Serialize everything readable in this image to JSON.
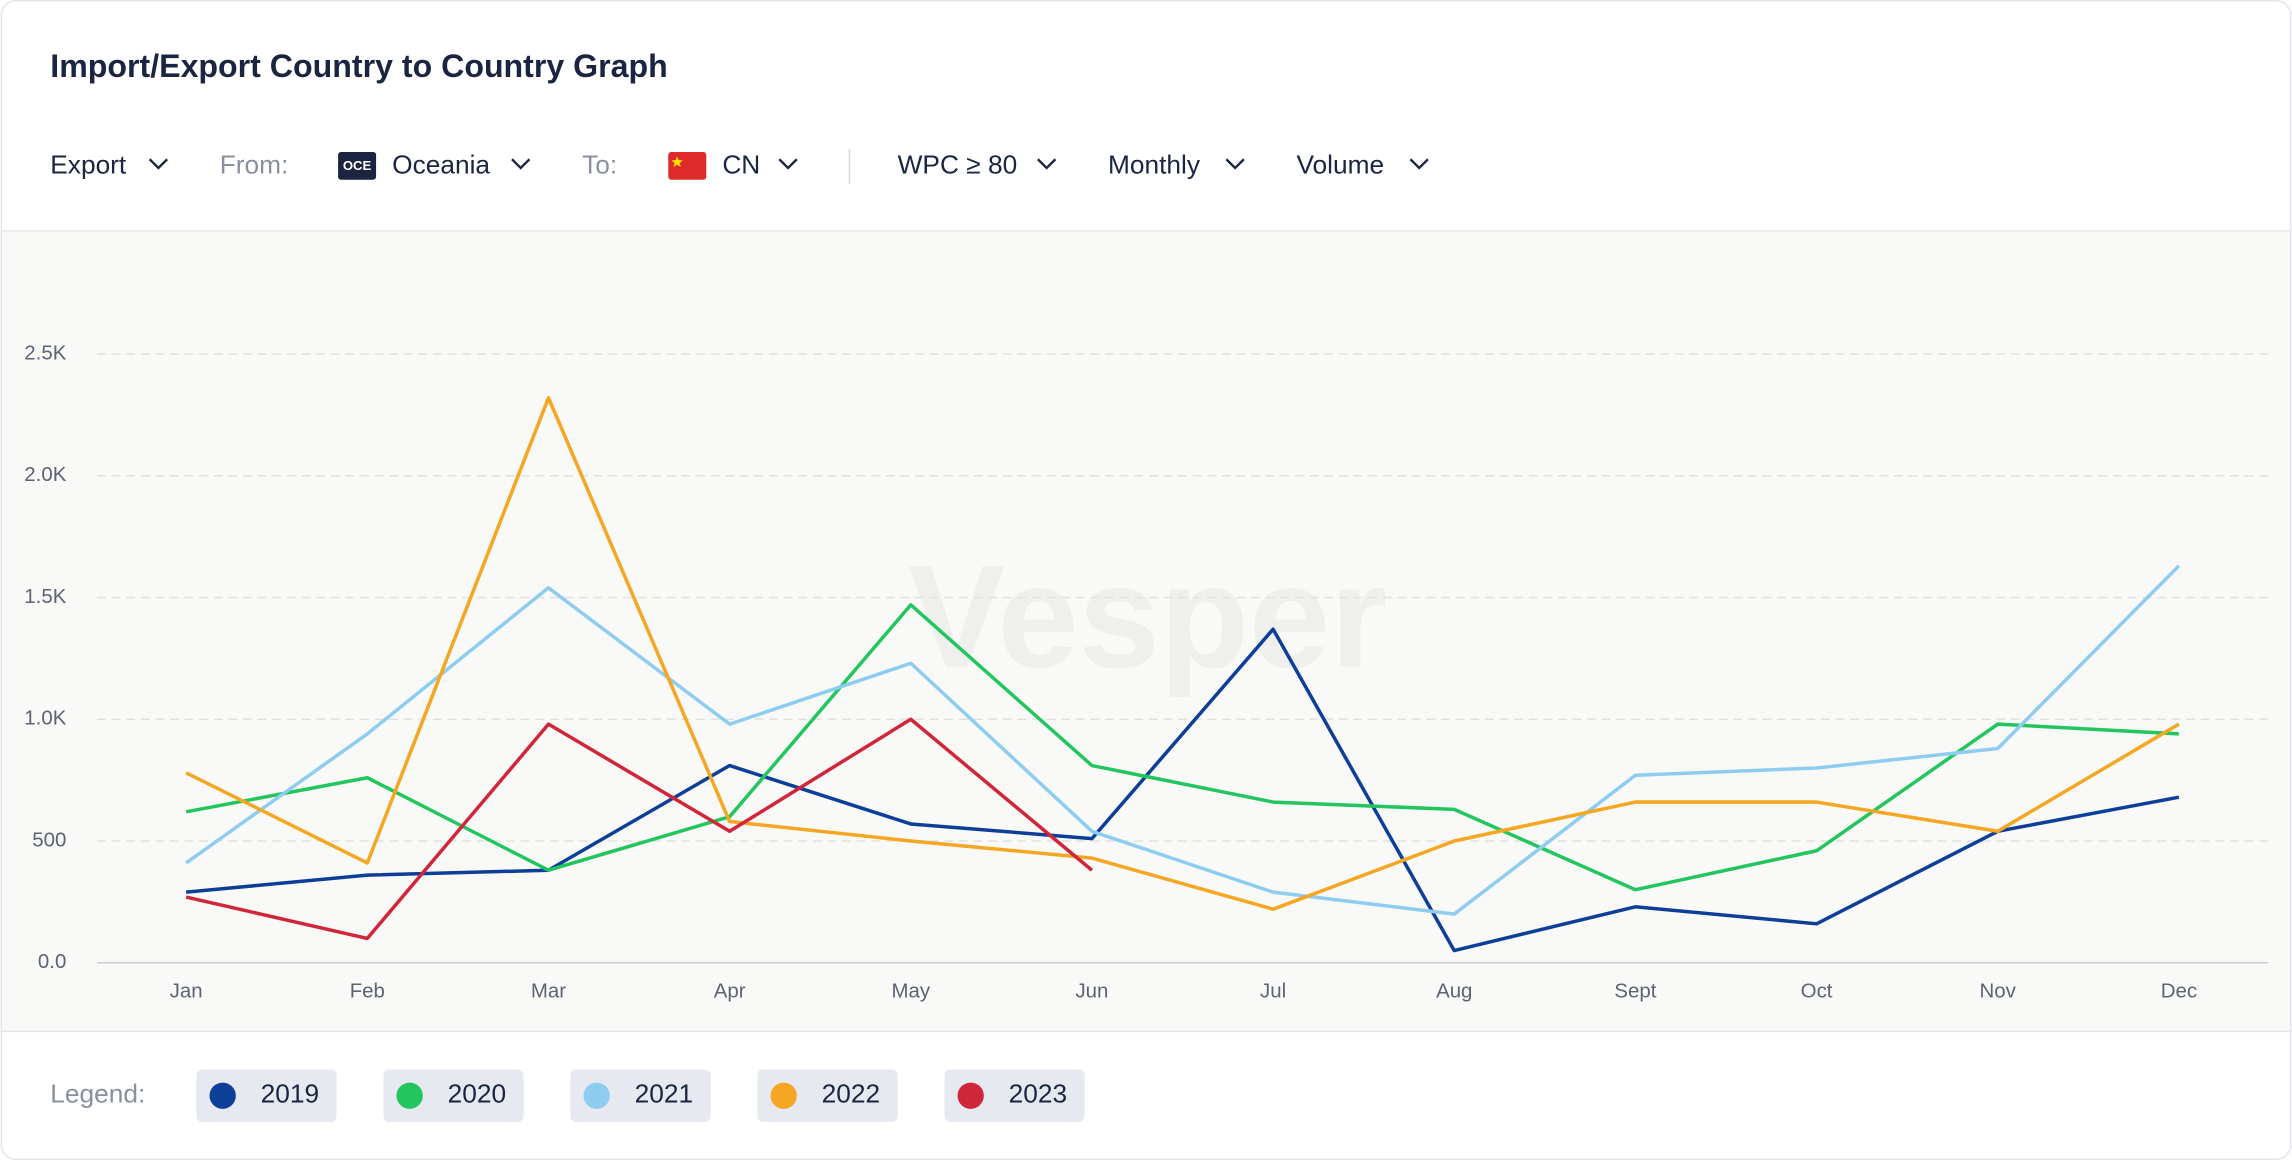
{
  "header": {
    "title": "Import/Export Country to Country Graph"
  },
  "filters": {
    "direction": "Export",
    "from_label": "From:",
    "from_badge": "OCE",
    "from_value": "Oceania",
    "to_label": "To:",
    "to_value": "CN",
    "wpc": "WPC ≥ 80",
    "period": "Monthly",
    "metric": "Volume"
  },
  "watermark": "Vesper",
  "chart_data": {
    "type": "line",
    "categories": [
      "Jan",
      "Feb",
      "Mar",
      "Apr",
      "May",
      "Jun",
      "Jul",
      "Aug",
      "Sept",
      "Oct",
      "Nov",
      "Dec"
    ],
    "series": [
      {
        "name": "2019",
        "color": "#0d3f99",
        "values": [
          290,
          360,
          380,
          810,
          570,
          510,
          1370,
          50,
          230,
          160,
          540,
          680
        ]
      },
      {
        "name": "2020",
        "color": "#22c55e",
        "values": [
          620,
          760,
          380,
          600,
          1470,
          810,
          660,
          630,
          300,
          460,
          980,
          940
        ]
      },
      {
        "name": "2021",
        "color": "#8ecdf0",
        "values": [
          410,
          940,
          1540,
          980,
          1230,
          540,
          290,
          200,
          770,
          800,
          880,
          1630
        ]
      },
      {
        "name": "2022",
        "color": "#f5a623",
        "values": [
          780,
          410,
          2320,
          580,
          500,
          430,
          220,
          500,
          660,
          660,
          540,
          980
        ]
      },
      {
        "name": "2023",
        "color": "#d0263a",
        "values": [
          270,
          100,
          980,
          540,
          1000,
          380,
          null,
          null,
          null,
          null,
          null,
          null
        ]
      }
    ],
    "ylim": [
      0,
      3000
    ],
    "yticks": [
      {
        "value": 0,
        "label": "0.0"
      },
      500,
      {
        "value": 1000,
        "label": "1.0K"
      },
      {
        "value": 1500,
        "label": "1.5K"
      },
      {
        "value": 2000,
        "label": "2.0K"
      },
      {
        "value": 2500,
        "label": "2.5K"
      }
    ],
    "grid": true,
    "legend_label": "Legend:"
  }
}
